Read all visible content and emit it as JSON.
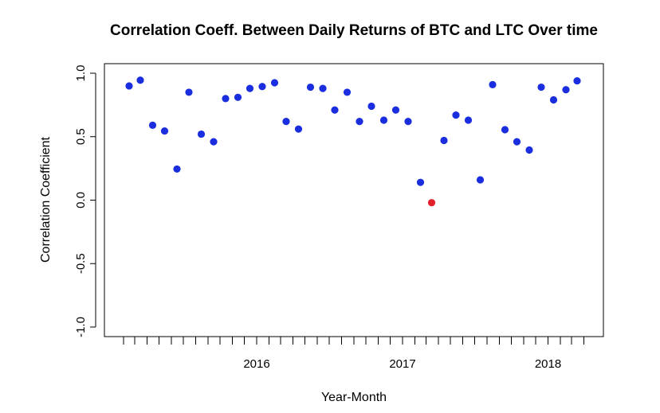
{
  "chart_data": {
    "type": "scatter",
    "title": "Correlation Coeff. Between Daily Returns of BTC and LTC Over time",
    "xlabel": "Year-Month",
    "ylabel": "Correlation Coefficient",
    "ylim": [
      -1.0,
      1.0
    ],
    "yticks": [
      {
        "value": -1.0,
        "label": "-1.0"
      },
      {
        "value": -0.5,
        "label": "-0.5"
      },
      {
        "value": 0.0,
        "label": "0.0"
      },
      {
        "value": 0.5,
        "label": "0.5"
      },
      {
        "value": 1.0,
        "label": "1.0"
      }
    ],
    "xlim": [
      "2015-01-01",
      "2018-05-01"
    ],
    "xticks_minor": [
      "2015-02",
      "2015-03",
      "2015-04",
      "2015-05",
      "2015-06",
      "2015-07",
      "2015-08",
      "2015-09",
      "2015-10",
      "2015-11",
      "2015-12",
      "2016-01",
      "2016-02",
      "2016-03",
      "2016-04",
      "2016-05",
      "2016-06",
      "2016-07",
      "2016-08",
      "2016-09",
      "2016-10",
      "2016-11",
      "2016-12",
      "2017-01",
      "2017-02",
      "2017-03",
      "2017-04",
      "2017-05",
      "2017-06",
      "2017-07",
      "2017-08",
      "2017-09",
      "2017-10",
      "2017-11",
      "2017-12",
      "2018-01",
      "2018-02",
      "2018-03",
      "2018-04"
    ],
    "xticks_labeled": [
      {
        "date": "2016-01-01",
        "label": "2016"
      },
      {
        "date": "2017-01-01",
        "label": "2017"
      },
      {
        "date": "2018-01-01",
        "label": "2018"
      }
    ],
    "grid": false,
    "colors": {
      "normal": "#1a2ee0",
      "highlight": "#e0202a"
    },
    "points": [
      {
        "x": "2015-02",
        "y": 0.9
      },
      {
        "x": "2015-03",
        "y": 0.945
      },
      {
        "x": "2015-04",
        "y": 0.59
      },
      {
        "x": "2015-05",
        "y": 0.545
      },
      {
        "x": "2015-06",
        "y": 0.245
      },
      {
        "x": "2015-07",
        "y": 0.85
      },
      {
        "x": "2015-08",
        "y": 0.52
      },
      {
        "x": "2015-09",
        "y": 0.46
      },
      {
        "x": "2015-10",
        "y": 0.8
      },
      {
        "x": "2015-11",
        "y": 0.81
      },
      {
        "x": "2015-12",
        "y": 0.88
      },
      {
        "x": "2016-01",
        "y": 0.895
      },
      {
        "x": "2016-02",
        "y": 0.925
      },
      {
        "x": "2016-03",
        "y": 0.62
      },
      {
        "x": "2016-04",
        "y": 0.56
      },
      {
        "x": "2016-05",
        "y": 0.89
      },
      {
        "x": "2016-06",
        "y": 0.88
      },
      {
        "x": "2016-07",
        "y": 0.71
      },
      {
        "x": "2016-08",
        "y": 0.85
      },
      {
        "x": "2016-09",
        "y": 0.62
      },
      {
        "x": "2016-10",
        "y": 0.74
      },
      {
        "x": "2016-11",
        "y": 0.63
      },
      {
        "x": "2016-12",
        "y": 0.71
      },
      {
        "x": "2017-01",
        "y": 0.62
      },
      {
        "x": "2017-02",
        "y": 0.14
      },
      {
        "x": "2017-03",
        "y": -0.02,
        "highlight": true
      },
      {
        "x": "2017-04",
        "y": 0.47
      },
      {
        "x": "2017-05",
        "y": 0.67
      },
      {
        "x": "2017-06",
        "y": 0.63
      },
      {
        "x": "2017-07",
        "y": 0.16
      },
      {
        "x": "2017-08",
        "y": 0.91
      },
      {
        "x": "2017-09",
        "y": 0.555
      },
      {
        "x": "2017-10",
        "y": 0.46
      },
      {
        "x": "2017-11",
        "y": 0.395
      },
      {
        "x": "2017-12",
        "y": 0.89
      },
      {
        "x": "2018-01",
        "y": 0.79
      },
      {
        "x": "2018-02",
        "y": 0.87
      },
      {
        "x": "2018-03",
        "y": 0.94
      }
    ]
  }
}
